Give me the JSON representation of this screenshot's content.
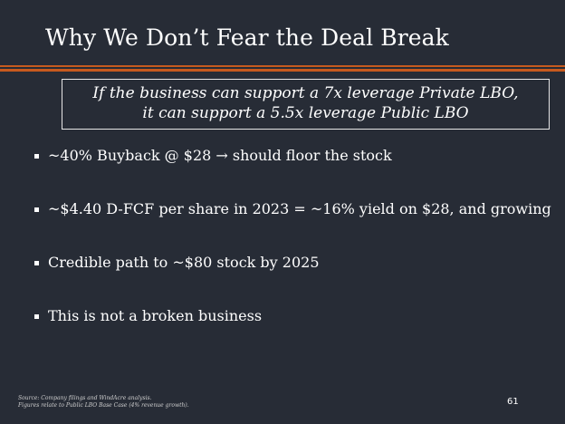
{
  "slide": {
    "title": "Why We Don’t Fear the Deal Break",
    "callout": {
      "line1": "If the business can support a 7x leverage Private LBO,",
      "line2": "it can support a 5.5x leverage Public LBO"
    },
    "bullets": [
      "~40% Buyback @ $28 → should floor the stock",
      "~$4.40 D-FCF per share in 2023 = ~16% yield on $28, and growing",
      "Credible path to ~$80 stock by 2025",
      "This is not a broken business"
    ],
    "footnote": {
      "line1": "Source: Company filings and WindAcre analysis.",
      "line2": "Figures relate to Public LBO Base Case (4% revenue growth)."
    },
    "page_number": "61"
  },
  "colors": {
    "background": "#272c36",
    "accent_rule": "#c75a1e",
    "text": "#ffffff"
  },
  "icons": {
    "bullet_marker": "square-bullet-icon"
  }
}
